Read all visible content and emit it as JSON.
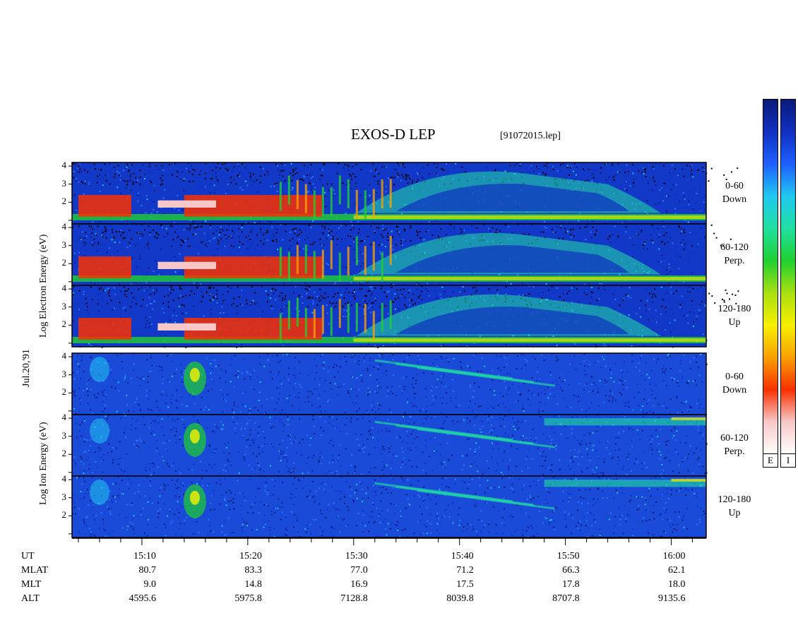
{
  "title": "EXOS-D LEP",
  "file_label": "[91072015.lep]",
  "date_label": "Jul.20,'91",
  "electron_ylabel": "Log Electron Energy (eV)",
  "ion_ylabel": "Log Ion Energy (eV)",
  "colorbar": {
    "electron_label": "E",
    "ion_label": "I",
    "colors": [
      "#0a1a7a",
      "#1030c0",
      "#1e60ff",
      "#20c8f0",
      "#20e0a0",
      "#20d030",
      "#a8e010",
      "#f8f000",
      "#f8a000",
      "#f83000",
      "#f8c8c8",
      "#ffffff"
    ]
  },
  "panels": [
    {
      "species": "electron",
      "label_top": "0-60",
      "label_bottom": "Down"
    },
    {
      "species": "electron",
      "label_top": "60-120",
      "label_bottom": "Perp."
    },
    {
      "species": "electron",
      "label_top": "120-180",
      "label_bottom": "Up"
    },
    {
      "species": "ion",
      "label_top": "0-60",
      "label_bottom": "Down"
    },
    {
      "species": "ion",
      "label_top": "60-120",
      "label_bottom": "Perp."
    },
    {
      "species": "ion",
      "label_top": "120-180",
      "label_bottom": "Up"
    }
  ],
  "footer": {
    "rows": [
      {
        "name": "UT",
        "values": [
          "15:10",
          "15:20",
          "15:30",
          "15:40",
          "15:50",
          "16:00"
        ]
      },
      {
        "name": "MLAT",
        "values": [
          "80.7",
          "83.3",
          "77.0",
          "71.2",
          "66.3",
          "62.1"
        ]
      },
      {
        "name": "MLT",
        "values": [
          "9.0",
          "14.8",
          "16.9",
          "17.5",
          "17.8",
          "18.0"
        ]
      },
      {
        "name": "ALT",
        "values": [
          "4595.6",
          "5975.8",
          "7128.8",
          "8039.8",
          "8707.8",
          "9135.6"
        ]
      }
    ]
  },
  "chart_data": {
    "type": "heatmap",
    "x_label": "UT",
    "x_ticks": [
      "15:10",
      "15:20",
      "15:30",
      "15:40",
      "15:50",
      "16:00"
    ],
    "x_range_minutes_from_1510": [
      -6.6,
      53.3
    ],
    "y_ticks": [
      1,
      2,
      3,
      4
    ],
    "y_range": [
      1,
      4
    ],
    "panels": [
      "Electron 0-60 Down",
      "Electron 60-120 Perp.",
      "Electron 120-180 Up",
      "Ion 0-60 Down",
      "Ion 60-120 Perp.",
      "Ion 120-180 Up"
    ]
  }
}
